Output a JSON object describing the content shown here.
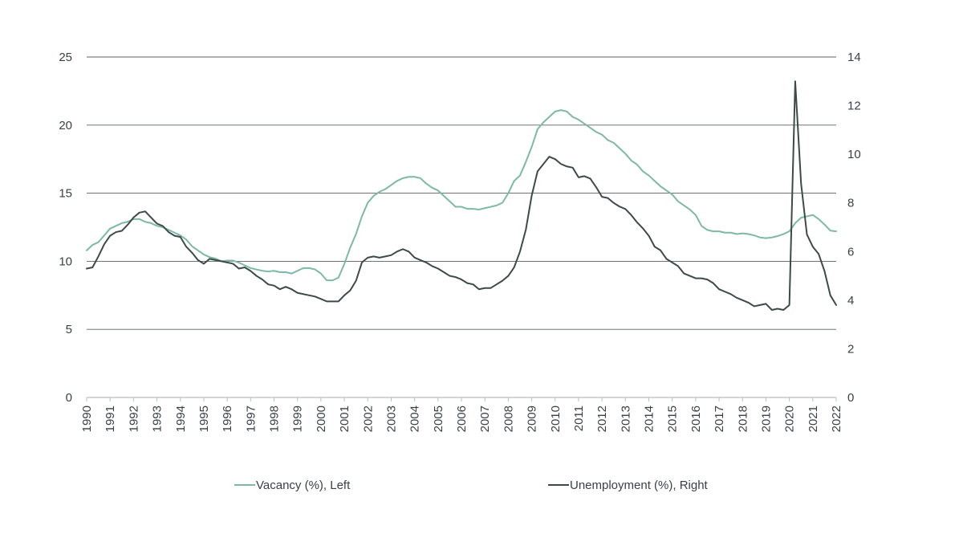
{
  "chart_data": {
    "type": "line",
    "title": "",
    "xlabel": "",
    "ylabel_left": "",
    "ylabel_right": "",
    "x_start": 1990,
    "x_end": 2022,
    "x_ticks": [
      "1990",
      "1991",
      "1992",
      "1993",
      "1994",
      "1995",
      "1996",
      "1997",
      "1998",
      "1999",
      "2000",
      "2001",
      "2002",
      "2003",
      "2004",
      "2005",
      "2006",
      "2007",
      "2008",
      "2009",
      "2010",
      "2011",
      "2012",
      "2013",
      "2014",
      "2015",
      "2016",
      "2017",
      "2018",
      "2019",
      "2020",
      "2021",
      "2022"
    ],
    "y_left": {
      "min": 0,
      "max": 25,
      "ticks": [
        0,
        5,
        10,
        15,
        20,
        25
      ]
    },
    "y_right": {
      "min": 0,
      "max": 14,
      "ticks": [
        0,
        2,
        4,
        6,
        8,
        10,
        12,
        14
      ]
    },
    "grid": "horizontal",
    "legend_position": "bottom",
    "series": [
      {
        "name": "Vacancy (%), Left",
        "axis": "left",
        "color": "#7db9a3",
        "points": [
          [
            1990.0,
            10.8
          ],
          [
            1990.25,
            11.2
          ],
          [
            1990.5,
            11.4
          ],
          [
            1990.75,
            11.9
          ],
          [
            1991.0,
            12.4
          ],
          [
            1991.25,
            12.6
          ],
          [
            1991.5,
            12.8
          ],
          [
            1991.75,
            12.9
          ],
          [
            1992.0,
            13.1
          ],
          [
            1992.25,
            13.1
          ],
          [
            1992.5,
            12.9
          ],
          [
            1992.75,
            12.8
          ],
          [
            1993.0,
            12.6
          ],
          [
            1993.25,
            12.5
          ],
          [
            1993.5,
            12.3
          ],
          [
            1993.75,
            12.1
          ],
          [
            1994.0,
            11.9
          ],
          [
            1994.25,
            11.6
          ],
          [
            1994.5,
            11.1
          ],
          [
            1994.75,
            10.8
          ],
          [
            1995.0,
            10.5
          ],
          [
            1995.25,
            10.3
          ],
          [
            1995.5,
            10.2
          ],
          [
            1995.75,
            10.0
          ],
          [
            1996.0,
            10.05
          ],
          [
            1996.25,
            10.05
          ],
          [
            1996.5,
            9.9
          ],
          [
            1996.75,
            9.7
          ],
          [
            1997.0,
            9.5
          ],
          [
            1997.25,
            9.4
          ],
          [
            1997.5,
            9.3
          ],
          [
            1997.75,
            9.25
          ],
          [
            1998.0,
            9.3
          ],
          [
            1998.25,
            9.2
          ],
          [
            1998.5,
            9.2
          ],
          [
            1998.75,
            9.1
          ],
          [
            1999.0,
            9.3
          ],
          [
            1999.25,
            9.5
          ],
          [
            1999.5,
            9.5
          ],
          [
            1999.75,
            9.4
          ],
          [
            2000.0,
            9.1
          ],
          [
            2000.25,
            8.6
          ],
          [
            2000.5,
            8.6
          ],
          [
            2000.75,
            8.8
          ],
          [
            2001.0,
            9.8
          ],
          [
            2001.25,
            11.0
          ],
          [
            2001.5,
            12.0
          ],
          [
            2001.75,
            13.3
          ],
          [
            2002.0,
            14.3
          ],
          [
            2002.25,
            14.8
          ],
          [
            2002.5,
            15.1
          ],
          [
            2002.75,
            15.3
          ],
          [
            2003.0,
            15.6
          ],
          [
            2003.25,
            15.9
          ],
          [
            2003.5,
            16.1
          ],
          [
            2003.75,
            16.2
          ],
          [
            2004.0,
            16.2
          ],
          [
            2004.25,
            16.1
          ],
          [
            2004.5,
            15.7
          ],
          [
            2004.75,
            15.4
          ],
          [
            2005.0,
            15.2
          ],
          [
            2005.25,
            14.8
          ],
          [
            2005.5,
            14.4
          ],
          [
            2005.75,
            14.0
          ],
          [
            2006.0,
            14.0
          ],
          [
            2006.25,
            13.85
          ],
          [
            2006.5,
            13.85
          ],
          [
            2006.75,
            13.8
          ],
          [
            2007.0,
            13.9
          ],
          [
            2007.25,
            14.0
          ],
          [
            2007.5,
            14.1
          ],
          [
            2007.75,
            14.3
          ],
          [
            2008.0,
            15.0
          ],
          [
            2008.25,
            15.9
          ],
          [
            2008.5,
            16.3
          ],
          [
            2008.75,
            17.3
          ],
          [
            2009.0,
            18.4
          ],
          [
            2009.25,
            19.7
          ],
          [
            2009.5,
            20.2
          ],
          [
            2009.75,
            20.6
          ],
          [
            2010.0,
            21.0
          ],
          [
            2010.25,
            21.1
          ],
          [
            2010.5,
            21.0
          ],
          [
            2010.75,
            20.6
          ],
          [
            2011.0,
            20.4
          ],
          [
            2011.25,
            20.1
          ],
          [
            2011.5,
            19.8
          ],
          [
            2011.75,
            19.5
          ],
          [
            2012.0,
            19.3
          ],
          [
            2012.25,
            18.9
          ],
          [
            2012.5,
            18.7
          ],
          [
            2012.75,
            18.3
          ],
          [
            2013.0,
            17.9
          ],
          [
            2013.25,
            17.4
          ],
          [
            2013.5,
            17.1
          ],
          [
            2013.75,
            16.6
          ],
          [
            2014.0,
            16.3
          ],
          [
            2014.25,
            15.9
          ],
          [
            2014.5,
            15.5
          ],
          [
            2014.75,
            15.2
          ],
          [
            2015.0,
            14.9
          ],
          [
            2015.25,
            14.4
          ],
          [
            2015.5,
            14.1
          ],
          [
            2015.75,
            13.8
          ],
          [
            2016.0,
            13.4
          ],
          [
            2016.25,
            12.6
          ],
          [
            2016.5,
            12.3
          ],
          [
            2016.75,
            12.2
          ],
          [
            2017.0,
            12.2
          ],
          [
            2017.25,
            12.1
          ],
          [
            2017.5,
            12.1
          ],
          [
            2017.75,
            12.0
          ],
          [
            2018.0,
            12.05
          ],
          [
            2018.25,
            12.0
          ],
          [
            2018.5,
            11.9
          ],
          [
            2018.75,
            11.75
          ],
          [
            2019.0,
            11.7
          ],
          [
            2019.25,
            11.75
          ],
          [
            2019.5,
            11.85
          ],
          [
            2019.75,
            12.0
          ],
          [
            2020.0,
            12.2
          ],
          [
            2020.25,
            12.8
          ],
          [
            2020.5,
            13.2
          ],
          [
            2020.75,
            13.3
          ],
          [
            2021.0,
            13.4
          ],
          [
            2021.25,
            13.1
          ],
          [
            2021.5,
            12.7
          ],
          [
            2021.75,
            12.25
          ],
          [
            2022.0,
            12.2
          ]
        ]
      },
      {
        "name": "Unemployment (%), Right",
        "axis": "right",
        "color": "#3d4a4a",
        "points": [
          [
            1990.0,
            5.3
          ],
          [
            1990.25,
            5.35
          ],
          [
            1990.5,
            5.8
          ],
          [
            1990.75,
            6.3
          ],
          [
            1991.0,
            6.65
          ],
          [
            1991.25,
            6.8
          ],
          [
            1991.5,
            6.85
          ],
          [
            1991.75,
            7.1
          ],
          [
            1992.0,
            7.4
          ],
          [
            1992.25,
            7.6
          ],
          [
            1992.5,
            7.65
          ],
          [
            1992.75,
            7.4
          ],
          [
            1993.0,
            7.15
          ],
          [
            1993.25,
            7.05
          ],
          [
            1993.5,
            6.8
          ],
          [
            1993.75,
            6.65
          ],
          [
            1994.0,
            6.6
          ],
          [
            1994.25,
            6.2
          ],
          [
            1994.5,
            5.95
          ],
          [
            1994.75,
            5.65
          ],
          [
            1995.0,
            5.5
          ],
          [
            1995.25,
            5.7
          ],
          [
            1995.5,
            5.65
          ],
          [
            1995.75,
            5.6
          ],
          [
            1996.0,
            5.55
          ],
          [
            1996.25,
            5.5
          ],
          [
            1996.5,
            5.3
          ],
          [
            1996.75,
            5.35
          ],
          [
            1997.0,
            5.2
          ],
          [
            1997.25,
            5.0
          ],
          [
            1997.5,
            4.85
          ],
          [
            1997.75,
            4.65
          ],
          [
            1998.0,
            4.6
          ],
          [
            1998.25,
            4.45
          ],
          [
            1998.5,
            4.55
          ],
          [
            1998.75,
            4.45
          ],
          [
            1999.0,
            4.3
          ],
          [
            1999.25,
            4.25
          ],
          [
            1999.5,
            4.2
          ],
          [
            1999.75,
            4.15
          ],
          [
            2000.0,
            4.05
          ],
          [
            2000.25,
            3.95
          ],
          [
            2000.5,
            3.95
          ],
          [
            2000.75,
            3.95
          ],
          [
            2001.0,
            4.2
          ],
          [
            2001.25,
            4.4
          ],
          [
            2001.5,
            4.8
          ],
          [
            2001.75,
            5.55
          ],
          [
            2002.0,
            5.75
          ],
          [
            2002.25,
            5.8
          ],
          [
            2002.5,
            5.75
          ],
          [
            2002.75,
            5.8
          ],
          [
            2003.0,
            5.85
          ],
          [
            2003.25,
            6.0
          ],
          [
            2003.5,
            6.1
          ],
          [
            2003.75,
            6.0
          ],
          [
            2004.0,
            5.75
          ],
          [
            2004.25,
            5.65
          ],
          [
            2004.5,
            5.55
          ],
          [
            2004.75,
            5.4
          ],
          [
            2005.0,
            5.3
          ],
          [
            2005.25,
            5.15
          ],
          [
            2005.5,
            5.0
          ],
          [
            2005.75,
            4.95
          ],
          [
            2006.0,
            4.85
          ],
          [
            2006.25,
            4.7
          ],
          [
            2006.5,
            4.65
          ],
          [
            2006.75,
            4.45
          ],
          [
            2007.0,
            4.5
          ],
          [
            2007.25,
            4.5
          ],
          [
            2007.5,
            4.65
          ],
          [
            2007.75,
            4.8
          ],
          [
            2008.0,
            5.0
          ],
          [
            2008.25,
            5.35
          ],
          [
            2008.5,
            6.0
          ],
          [
            2008.75,
            6.9
          ],
          [
            2009.0,
            8.3
          ],
          [
            2009.25,
            9.3
          ],
          [
            2009.5,
            9.6
          ],
          [
            2009.75,
            9.9
          ],
          [
            2010.0,
            9.8
          ],
          [
            2010.25,
            9.6
          ],
          [
            2010.5,
            9.5
          ],
          [
            2010.75,
            9.45
          ],
          [
            2011.0,
            9.05
          ],
          [
            2011.25,
            9.1
          ],
          [
            2011.5,
            9.0
          ],
          [
            2011.75,
            8.65
          ],
          [
            2012.0,
            8.25
          ],
          [
            2012.25,
            8.2
          ],
          [
            2012.5,
            8.0
          ],
          [
            2012.75,
            7.85
          ],
          [
            2013.0,
            7.75
          ],
          [
            2013.25,
            7.5
          ],
          [
            2013.5,
            7.2
          ],
          [
            2013.75,
            6.95
          ],
          [
            2014.0,
            6.65
          ],
          [
            2014.25,
            6.2
          ],
          [
            2014.5,
            6.05
          ],
          [
            2014.75,
            5.7
          ],
          [
            2015.0,
            5.55
          ],
          [
            2015.25,
            5.4
          ],
          [
            2015.5,
            5.1
          ],
          [
            2015.75,
            5.0
          ],
          [
            2016.0,
            4.9
          ],
          [
            2016.25,
            4.9
          ],
          [
            2016.5,
            4.85
          ],
          [
            2016.75,
            4.7
          ],
          [
            2017.0,
            4.45
          ],
          [
            2017.25,
            4.35
          ],
          [
            2017.5,
            4.25
          ],
          [
            2017.75,
            4.1
          ],
          [
            2018.0,
            4.0
          ],
          [
            2018.25,
            3.9
          ],
          [
            2018.5,
            3.75
          ],
          [
            2018.75,
            3.8
          ],
          [
            2019.0,
            3.85
          ],
          [
            2019.25,
            3.6
          ],
          [
            2019.5,
            3.65
          ],
          [
            2019.75,
            3.6
          ],
          [
            2020.0,
            3.8
          ],
          [
            2020.25,
            13.0
          ],
          [
            2020.5,
            8.8
          ],
          [
            2020.75,
            6.7
          ],
          [
            2021.0,
            6.2
          ],
          [
            2021.25,
            5.9
          ],
          [
            2021.5,
            5.2
          ],
          [
            2021.75,
            4.2
          ],
          [
            2022.0,
            3.8
          ]
        ]
      }
    ]
  }
}
